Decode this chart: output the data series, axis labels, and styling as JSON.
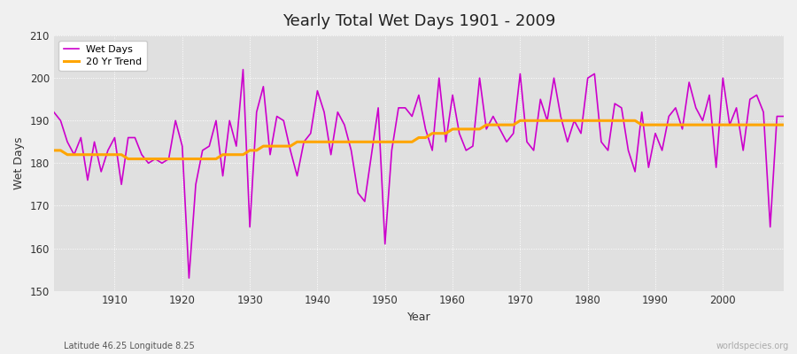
{
  "title": "Yearly Total Wet Days 1901 - 2009",
  "xlabel": "Year",
  "ylabel": "Wet Days",
  "subtitle": "Latitude 46.25 Longitude 8.25",
  "watermark": "worldspecies.org",
  "ylim": [
    150,
    210
  ],
  "yticks": [
    150,
    160,
    170,
    180,
    190,
    200,
    210
  ],
  "wet_days_color": "#cc00cc",
  "trend_color": "#FFA500",
  "fig_bg_color": "#f0f0f0",
  "plot_bg_color": "#e0e0e0",
  "years": [
    1901,
    1902,
    1903,
    1904,
    1905,
    1906,
    1907,
    1908,
    1909,
    1910,
    1911,
    1912,
    1913,
    1914,
    1915,
    1916,
    1917,
    1918,
    1919,
    1920,
    1921,
    1922,
    1923,
    1924,
    1925,
    1926,
    1927,
    1928,
    1929,
    1930,
    1931,
    1932,
    1933,
    1934,
    1935,
    1936,
    1937,
    1938,
    1939,
    1940,
    1941,
    1942,
    1943,
    1944,
    1945,
    1946,
    1947,
    1948,
    1949,
    1950,
    1951,
    1952,
    1953,
    1954,
    1955,
    1956,
    1957,
    1958,
    1959,
    1960,
    1961,
    1962,
    1963,
    1964,
    1965,
    1966,
    1967,
    1968,
    1969,
    1970,
    1971,
    1972,
    1973,
    1974,
    1975,
    1976,
    1977,
    1978,
    1979,
    1980,
    1981,
    1982,
    1983,
    1984,
    1985,
    1986,
    1987,
    1988,
    1989,
    1990,
    1991,
    1992,
    1993,
    1994,
    1995,
    1996,
    1997,
    1998,
    1999,
    2000,
    2001,
    2002,
    2003,
    2004,
    2005,
    2006,
    2007,
    2008,
    2009
  ],
  "wet_days": [
    192,
    190,
    185,
    182,
    186,
    176,
    185,
    178,
    183,
    186,
    175,
    186,
    186,
    182,
    180,
    181,
    180,
    181,
    190,
    184,
    153,
    175,
    183,
    184,
    190,
    177,
    190,
    184,
    202,
    165,
    192,
    198,
    182,
    191,
    190,
    183,
    177,
    185,
    187,
    197,
    192,
    182,
    192,
    189,
    183,
    173,
    171,
    182,
    193,
    161,
    183,
    193,
    193,
    191,
    196,
    188,
    183,
    200,
    185,
    196,
    187,
    183,
    184,
    200,
    188,
    191,
    188,
    185,
    187,
    201,
    185,
    183,
    195,
    190,
    200,
    191,
    185,
    190,
    187,
    200,
    201,
    185,
    183,
    194,
    193,
    183,
    178,
    192,
    179,
    187,
    183,
    191,
    193,
    188,
    199,
    193,
    190,
    196,
    179,
    200,
    189,
    193,
    183,
    195,
    196,
    192,
    165,
    191,
    191
  ],
  "trend_years": [
    1901,
    1902,
    1903,
    1904,
    1905,
    1906,
    1907,
    1908,
    1909,
    1910,
    1911,
    1912,
    1913,
    1914,
    1915,
    1916,
    1917,
    1918,
    1919,
    1920,
    1921,
    1922,
    1923,
    1924,
    1925,
    1926,
    1927,
    1928,
    1929,
    1930,
    1931,
    1932,
    1933,
    1934,
    1935,
    1936,
    1937,
    1938,
    1939,
    1940,
    1941,
    1942,
    1943,
    1944,
    1945,
    1946,
    1947,
    1948,
    1949,
    1950,
    1951,
    1952,
    1953,
    1954,
    1955,
    1956,
    1957,
    1958,
    1959,
    1960,
    1961,
    1962,
    1963,
    1964,
    1965,
    1966,
    1967,
    1968,
    1969,
    1970,
    1971,
    1972,
    1973,
    1974,
    1975,
    1976,
    1977,
    1978,
    1979,
    1980,
    1981,
    1982,
    1983,
    1984,
    1985,
    1986,
    1987,
    1988,
    1989,
    1990,
    1991,
    1992,
    1993,
    1994,
    1995,
    1996,
    1997,
    1998,
    1999,
    2000,
    2001,
    2002,
    2003,
    2004,
    2005,
    2006,
    2007,
    2008,
    2009
  ],
  "trend_values": [
    183,
    183,
    182,
    182,
    182,
    182,
    182,
    182,
    182,
    182,
    182,
    181,
    181,
    181,
    181,
    181,
    181,
    181,
    181,
    181,
    181,
    181,
    181,
    181,
    181,
    182,
    182,
    182,
    182,
    183,
    183,
    184,
    184,
    184,
    184,
    184,
    185,
    185,
    185,
    185,
    185,
    185,
    185,
    185,
    185,
    185,
    185,
    185,
    185,
    185,
    185,
    185,
    185,
    185,
    186,
    186,
    187,
    187,
    187,
    188,
    188,
    188,
    188,
    188,
    189,
    189,
    189,
    189,
    189,
    190,
    190,
    190,
    190,
    190,
    190,
    190,
    190,
    190,
    190,
    190,
    190,
    190,
    190,
    190,
    190,
    190,
    190,
    189,
    189,
    189,
    189,
    189,
    189,
    189,
    189,
    189,
    189,
    189,
    189,
    189,
    189,
    189,
    189,
    189,
    189,
    189,
    189,
    189,
    189
  ]
}
